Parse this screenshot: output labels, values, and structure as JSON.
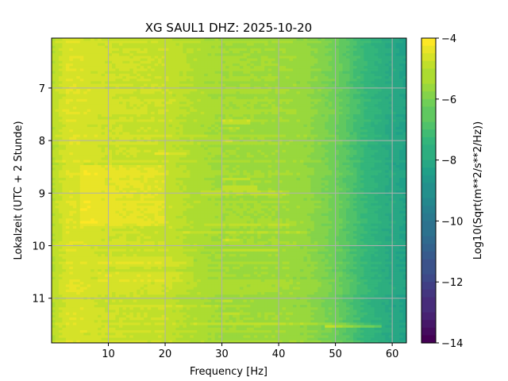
{
  "chart_data": {
    "type": "heatmap",
    "title": "XG SAUL1  DHZ: 2025-10-20",
    "xlabel": "Frequency [Hz]",
    "ylabel": "Lokalzeit (UTC + 2 Stunde)",
    "colorbar_label": "Log10(Sqrt(m**2/s**2/Hz))",
    "x_range": [
      0,
      62.5
    ],
    "y_range": [
      6.05,
      11.85
    ],
    "y_inverted": true,
    "x_ticks": [
      10,
      20,
      30,
      40,
      50,
      60
    ],
    "x_tick_labels": [
      "10",
      "20",
      "30",
      "40",
      "50",
      "60"
    ],
    "y_ticks": [
      7,
      8,
      9,
      10,
      11
    ],
    "y_tick_labels": [
      "7",
      "8",
      "9",
      "10",
      "11"
    ],
    "color_range": [
      -14,
      -4
    ],
    "colorbar_ticks": [
      -4,
      -6,
      -8,
      -10,
      -12,
      -14
    ],
    "colorbar_tick_labels": [
      "−4",
      "−6",
      "−8",
      "−10",
      "−12",
      "−14"
    ],
    "colormap": "viridis",
    "grid": true,
    "spectral_profile": {
      "frequency_hz": [
        0,
        3,
        10,
        20,
        25,
        30,
        40,
        45,
        50,
        55,
        60,
        62.5
      ],
      "log10_psd": [
        -5.1,
        -4.5,
        -4.75,
        -4.85,
        -5.2,
        -5.4,
        -5.45,
        -5.6,
        -6.2,
        -7.3,
        -8.0,
        -8.3
      ]
    },
    "quiet_band": {
      "start_h": 8.45,
      "end_h": 9.65,
      "frequency_hz": [
        5,
        20
      ],
      "delta": 0.35
    },
    "quiet_spots": [
      {
        "time_h": 10.3,
        "frequency_hz": [
          8,
          25
        ],
        "delta": 0.25
      },
      {
        "time_h": 10.6,
        "frequency_hz": [
          8,
          25
        ],
        "delta": 0.25
      }
    ],
    "noise_lines": [
      {
        "time_h": 7.65,
        "frequency_hz": [
          30,
          35
        ],
        "delta": 0.5
      },
      {
        "time_h": 7.75,
        "frequency_hz": [
          30,
          33
        ],
        "delta": 0.4
      },
      {
        "time_h": 8.0,
        "frequency_hz": [
          30,
          32
        ],
        "delta": 0.6
      },
      {
        "time_h": 8.25,
        "frequency_hz": [
          18,
          24
        ],
        "delta": 0.4
      },
      {
        "time_h": 8.75,
        "frequency_hz": [
          30,
          35
        ],
        "delta": 0.6
      },
      {
        "time_h": 8.9,
        "frequency_hz": [
          30,
          36
        ],
        "delta": 0.5
      },
      {
        "time_h": 9.0,
        "frequency_hz": [
          26,
          42
        ],
        "delta": 0.4
      },
      {
        "time_h": 9.6,
        "frequency_hz": [
          27,
          43
        ],
        "delta": 0.4
      },
      {
        "time_h": 9.75,
        "frequency_hz": [
          23,
          45
        ],
        "delta": 0.35
      },
      {
        "time_h": 9.88,
        "frequency_hz": [
          30,
          33
        ],
        "delta": 0.6
      },
      {
        "time_h": 10.1,
        "frequency_hz": [
          30,
          40
        ],
        "delta": 0.45
      },
      {
        "time_h": 11.05,
        "frequency_hz": [
          30,
          32
        ],
        "delta": 0.6
      },
      {
        "time_h": 11.15,
        "frequency_hz": [
          10,
          35
        ],
        "delta": 0.35
      },
      {
        "time_h": 11.3,
        "frequency_hz": [
          30,
          33
        ],
        "delta": 0.5
      },
      {
        "time_h": 11.5,
        "frequency_hz": [
          25,
          55
        ],
        "delta": 0.35
      },
      {
        "time_h": 11.55,
        "frequency_hz": [
          48,
          58
        ],
        "delta": 1.2
      }
    ]
  }
}
